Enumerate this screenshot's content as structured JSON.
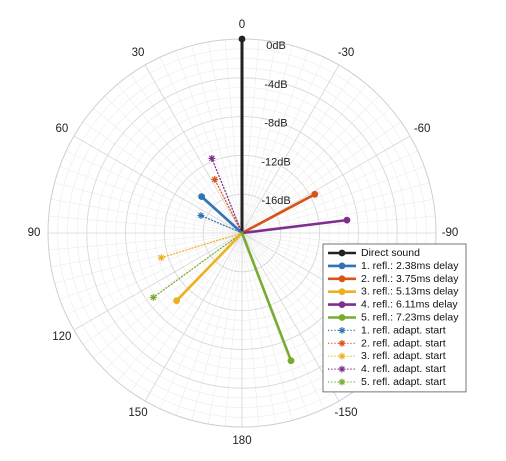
{
  "chart_data": {
    "type": "polar",
    "radial_axis": {
      "unit": "dB",
      "range": [
        -20,
        0
      ],
      "tick_labels": [
        "0dB",
        "-4dB",
        "-8dB",
        "-12dB",
        "-16dB"
      ],
      "tick_values": [
        0,
        -4,
        -8,
        -12,
        -16
      ],
      "label_angle_deg": 0
    },
    "angular_axis": {
      "unit": "deg",
      "direction": "counterclockwise",
      "zero_at": "top",
      "tick_labels": [
        "0",
        "30",
        "60",
        "90",
        "120",
        "150",
        "180",
        "-150",
        "-120",
        "-90",
        "-60",
        "-30"
      ],
      "tick_values": [
        0,
        30,
        60,
        90,
        120,
        150,
        180,
        -150,
        -120,
        -90,
        -60,
        -30
      ]
    },
    "grid": true,
    "legend_position": "bottom-right",
    "series": [
      {
        "name": "Direct sound",
        "kind": "stem",
        "style": "solid",
        "color": "#222222",
        "angle": 0,
        "value": 0
      },
      {
        "name": "1. refl.: 2.38ms delay",
        "kind": "stem",
        "style": "solid",
        "color": "#2f74b5",
        "angle": 48,
        "value": -14.4
      },
      {
        "name": "2. refl.: 3.75ms delay",
        "kind": "stem",
        "style": "solid",
        "color": "#d95319",
        "angle": -62,
        "value": -11.5
      },
      {
        "name": "3. refl.: 5.13ms delay",
        "kind": "stem",
        "style": "solid",
        "color": "#edb120",
        "angle": 136,
        "value": -10.3
      },
      {
        "name": "4. refl.: 6.11ms delay",
        "kind": "stem",
        "style": "solid",
        "color": "#7e2f8e",
        "angle": -83,
        "value": -9.1
      },
      {
        "name": "5. refl.: 7.23ms delay",
        "kind": "stem",
        "style": "solid",
        "color": "#77ac30",
        "angle": -159,
        "value": -5.9
      },
      {
        "name": "1. refl. adapt. start",
        "kind": "stem",
        "style": "dotted",
        "color": "#2f74b5",
        "angle": 67,
        "value": -15.4
      },
      {
        "name": "2. refl. adapt. start",
        "kind": "stem",
        "style": "dotted",
        "color": "#d95319",
        "angle": 27,
        "value": -13.8
      },
      {
        "name": "3. refl. adapt. start",
        "kind": "stem",
        "style": "dotted",
        "color": "#edb120",
        "angle": 107,
        "value": -11.3
      },
      {
        "name": "4. refl. adapt. start",
        "kind": "stem",
        "style": "dotted",
        "color": "#7e2f8e",
        "angle": 22,
        "value": -11.7
      },
      {
        "name": "5. refl. adapt. start",
        "kind": "stem",
        "style": "dotted",
        "color": "#77ac30",
        "angle": 126,
        "value": -8.7
      }
    ]
  }
}
